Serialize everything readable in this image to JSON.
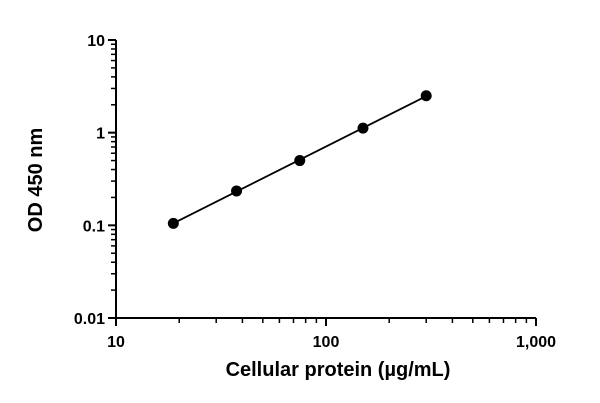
{
  "chart_data": {
    "type": "scatter",
    "xlabel": "Cellular protein (µg/mL)",
    "ylabel": "OD 450 nm",
    "xscale": "log",
    "yscale": "log",
    "xlim": [
      10,
      1000
    ],
    "ylim": [
      0.01,
      10
    ],
    "x_ticks": [
      10,
      100,
      1000
    ],
    "x_tick_labels": [
      "10",
      "100",
      "1,000"
    ],
    "y_ticks": [
      0.01,
      0.1,
      1,
      10
    ],
    "y_tick_labels": [
      "0.01",
      "0.1",
      "1",
      "10"
    ],
    "grid": false,
    "series": [
      {
        "x": [
          18.75,
          37.5,
          75,
          150,
          300
        ],
        "y": [
          0.105,
          0.235,
          0.5,
          1.12,
          2.5
        ],
        "color": "#000000",
        "fit_line": true
      }
    ]
  }
}
